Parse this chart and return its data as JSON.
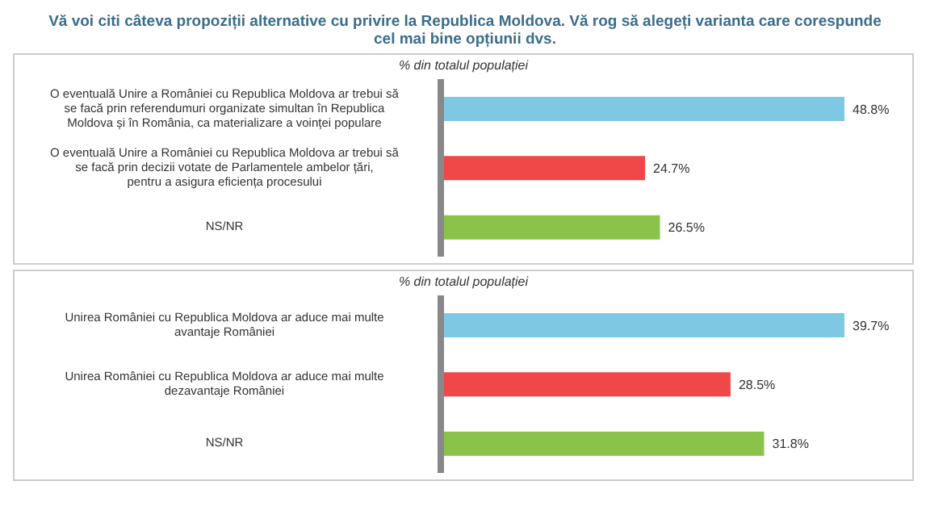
{
  "chart_data": [
    {
      "type": "bar",
      "orientation": "horizontal",
      "title": "Vă voi citi câteva propoziții alternative cu privire la Republica Moldova. Vă rog să alegeți varianta care corespunde cel mai bine opțiunii dvs.",
      "subtitle": "% din totalul populației",
      "categories": [
        "O eventuală Unire a României cu Republica Moldova ar trebui să se facă prin referendumuri organizate simultan în Republica Moldova și în România, ca materializare a voinței populare",
        "O eventuală Unire a României cu Republica Moldova ar trebui să se facă prin decizii votate de Parlamentele ambelor țări, pentru a asigura eficiența procesului",
        "NS/NR"
      ],
      "values": [
        48.8,
        24.7,
        26.5
      ],
      "colors": [
        "#7ec8e3",
        "#f04848",
        "#8bc34a"
      ],
      "value_labels": [
        "48.8%",
        "24.7%",
        "26.5%"
      ],
      "tick_labels": "y"
    },
    {
      "type": "bar",
      "orientation": "horizontal",
      "subtitle": "% din totalul populației",
      "categories": [
        "Unirea României cu Republica Moldova ar aduce mai multe avantaje României",
        "Unirea României cu Republica Moldova ar aduce mai multe dezavantaje României",
        "NS/NR"
      ],
      "values": [
        39.7,
        28.5,
        31.8
      ],
      "colors": [
        "#7ec8e3",
        "#f04848",
        "#8bc34a"
      ],
      "value_labels": [
        "39.7%",
        "28.5%",
        "31.8%"
      ],
      "tick_labels": "y"
    }
  ]
}
